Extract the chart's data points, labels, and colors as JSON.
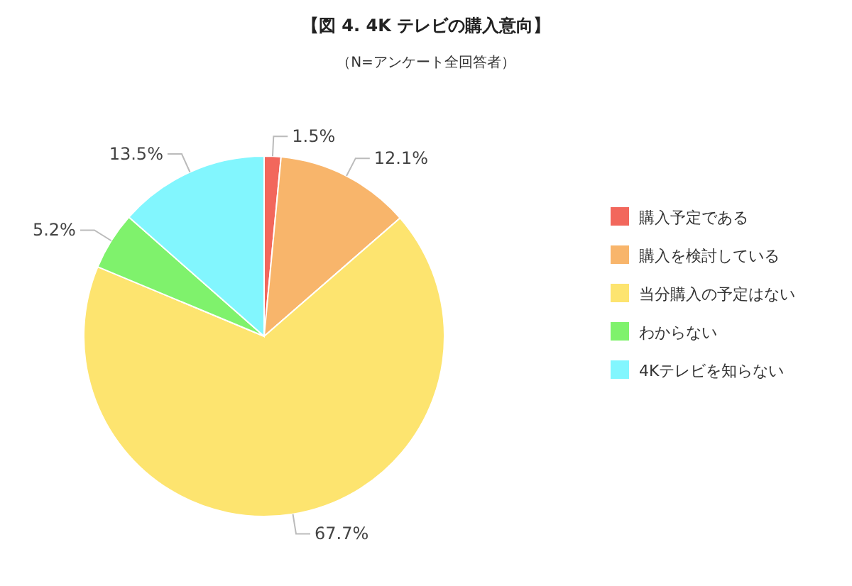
{
  "chart_data": {
    "type": "pie",
    "title": "【図 4.  4K テレビの購入意向】",
    "subtitle": "（N=アンケート全回答者）",
    "categories": [
      "購入予定である",
      "購入を検討している",
      "当分購入の予定はない",
      "わからない",
      "4Kテレビを知らない"
    ],
    "values": [
      1.5,
      12.1,
      67.7,
      5.2,
      13.5
    ],
    "colors": [
      "#f2675c",
      "#f8b56b",
      "#fde46f",
      "#7ff26c",
      "#82f6fe"
    ],
    "value_labels": [
      "1.5%",
      "12.1%",
      "67.7%",
      "5.2%",
      "13.5%"
    ],
    "legend": "right"
  }
}
